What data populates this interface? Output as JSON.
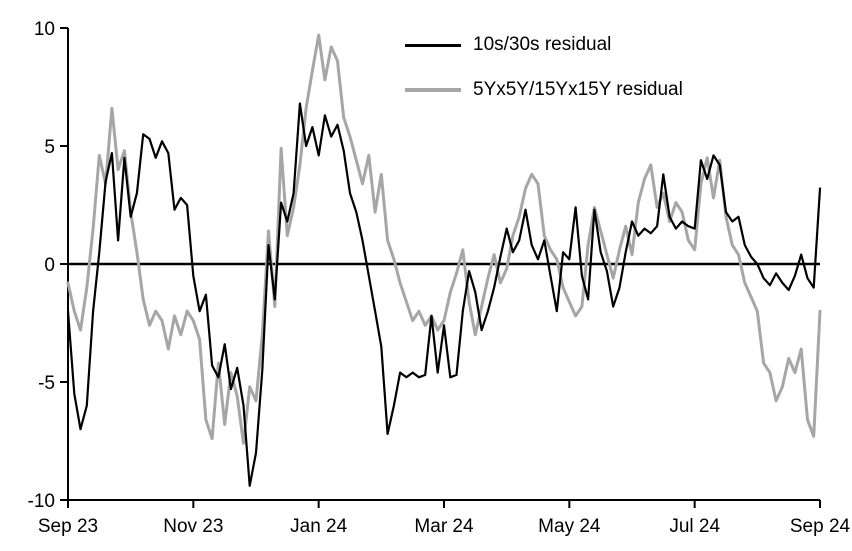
{
  "legend": {
    "items": [
      {
        "label": "10s/30s residual",
        "color": "#000000"
      },
      {
        "label": "5Yx5Y/15Yx15Y residual",
        "color": "#a6a6a6"
      }
    ]
  },
  "chart_data": {
    "type": "line",
    "title": "",
    "xlabel": "",
    "ylabel": "",
    "grid": false,
    "zero_line": true,
    "legend_position": "top-center",
    "xlim": [
      0,
      12
    ],
    "ylim": [
      -10,
      10
    ],
    "x_unit": "months since Sep 23",
    "x_tick_positions": [
      0,
      2,
      4,
      6,
      8,
      10,
      12
    ],
    "x_tick_labels": [
      "Sep 23",
      "Nov 23",
      "Jan 24",
      "Mar 24",
      "May 24",
      "Jul 24",
      "Sep 24"
    ],
    "y_ticks": [
      -10,
      -5,
      0,
      5,
      10
    ],
    "x_start": 0,
    "x_step": 0.1,
    "series": [
      {
        "name": "10s/30s residual",
        "color": "#000000",
        "width": 2.2,
        "values": [
          -2.0,
          -5.5,
          -7.0,
          -6.0,
          -2.0,
          0.5,
          3.5,
          4.7,
          1.0,
          4.5,
          2.0,
          3.0,
          5.5,
          5.3,
          4.5,
          5.2,
          4.7,
          2.3,
          2.8,
          2.5,
          -0.5,
          -2.0,
          -1.3,
          -4.3,
          -4.8,
          -3.4,
          -5.3,
          -4.4,
          -6.0,
          -9.4,
          -8.0,
          -4.5,
          0.8,
          -1.5,
          2.6,
          1.8,
          3.0,
          6.8,
          5.0,
          5.8,
          4.6,
          6.3,
          5.4,
          5.9,
          4.8,
          3.0,
          2.2,
          1.0,
          -0.5,
          -2.0,
          -3.5,
          -7.2,
          -6.0,
          -4.6,
          -4.8,
          -4.6,
          -4.8,
          -4.7,
          -2.2,
          -4.6,
          -2.6,
          -4.8,
          -4.7,
          -2.0,
          -0.3,
          -1.2,
          -2.8,
          -2.0,
          -1.0,
          0.3,
          1.5,
          0.5,
          1.0,
          2.3,
          0.8,
          0.2,
          1.0,
          -0.5,
          -2.0,
          0.5,
          0.2,
          2.4,
          -0.5,
          -1.5,
          2.3,
          0.5,
          -0.3,
          -1.8,
          -1.0,
          0.5,
          1.8,
          1.2,
          1.5,
          1.3,
          1.6,
          3.8,
          2.0,
          1.5,
          1.8,
          1.6,
          1.5,
          4.4,
          3.6,
          4.6,
          4.2,
          2.2,
          1.8,
          2.0,
          0.8,
          0.3,
          0.0,
          -0.6,
          -0.9,
          -0.4,
          -0.8,
          -1.1,
          -0.5,
          0.4,
          -0.6,
          -1.0,
          3.2
        ]
      },
      {
        "name": "5Yx5Y/15Yx15Y residual",
        "color": "#a6a6a6",
        "width": 3,
        "values": [
          -0.8,
          -2.0,
          -2.8,
          -1.0,
          1.5,
          4.6,
          3.4,
          6.6,
          4.0,
          4.8,
          2.2,
          0.5,
          -1.5,
          -2.6,
          -2.0,
          -2.4,
          -3.6,
          -2.2,
          -3.0,
          -2.0,
          -2.4,
          -3.2,
          -6.6,
          -7.4,
          -4.2,
          -6.8,
          -4.6,
          -5.6,
          -7.6,
          -5.2,
          -5.8,
          -3.0,
          1.4,
          -1.8,
          4.9,
          1.2,
          2.4,
          4.2,
          6.6,
          8.2,
          9.7,
          7.8,
          9.2,
          8.6,
          6.2,
          5.4,
          4.4,
          3.4,
          4.6,
          2.2,
          3.8,
          1.0,
          0.2,
          -0.8,
          -1.6,
          -2.4,
          -2.0,
          -2.6,
          -2.2,
          -2.8,
          -2.4,
          -1.2,
          -0.4,
          0.6,
          -1.6,
          -3.0,
          -1.8,
          -0.6,
          0.4,
          -0.8,
          -0.2,
          1.2,
          2.0,
          3.2,
          3.8,
          3.4,
          1.2,
          0.6,
          0.2,
          -1.0,
          -1.6,
          -2.2,
          -1.8,
          0.8,
          2.4,
          1.4,
          0.4,
          -0.6,
          0.6,
          1.6,
          0.4,
          2.6,
          3.6,
          4.2,
          2.4,
          3.0,
          1.8,
          2.6,
          2.2,
          1.0,
          0.6,
          3.4,
          4.5,
          2.8,
          4.4,
          2.0,
          0.8,
          0.4,
          -0.8,
          -1.4,
          -2.0,
          -4.2,
          -4.6,
          -5.8,
          -5.2,
          -4.0,
          -4.6,
          -3.6,
          -6.6,
          -7.3,
          -2.0
        ]
      }
    ]
  }
}
